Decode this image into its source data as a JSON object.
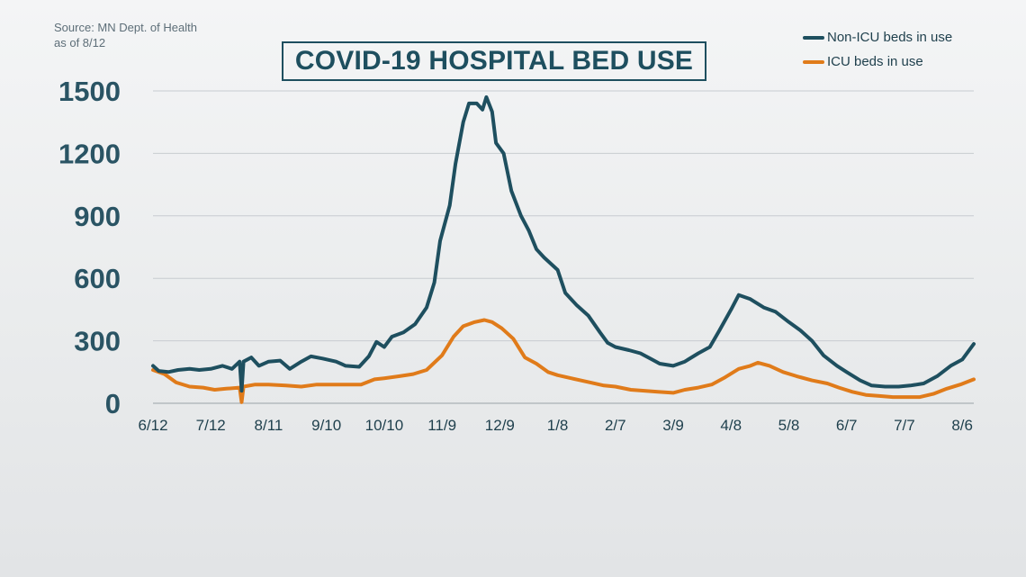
{
  "source": {
    "line1": "Source: MN Dept. of Health",
    "line2": "as of 8/12"
  },
  "colors": {
    "non_icu": "#1e4f5f",
    "icu": "#e07b1a",
    "grid": "#c8ccd0",
    "title": "#1e4f5f"
  },
  "chart_data": {
    "type": "line",
    "title": "COVID-19 HOSPITAL BED USE",
    "xlabel": "",
    "ylabel": "",
    "ylim": [
      0,
      1500
    ],
    "yticks": [
      0,
      300,
      600,
      900,
      1200,
      1500
    ],
    "xticks": [
      "6/12",
      "7/12",
      "8/11",
      "9/10",
      "10/10",
      "11/9",
      "12/9",
      "1/8",
      "2/7",
      "3/9",
      "4/8",
      "5/8",
      "6/7",
      "7/7",
      "8/6"
    ],
    "grid": true,
    "legend_position": "top-right",
    "x_start": "2020-06-12",
    "x_end": "2021-08-12",
    "series": [
      {
        "name": "Non-ICU beds in use",
        "color": "#1e4f5f",
        "points": [
          [
            "2020-06-12",
            180
          ],
          [
            "2020-06-15",
            155
          ],
          [
            "2020-06-20",
            150
          ],
          [
            "2020-06-25",
            160
          ],
          [
            "2020-07-01",
            165
          ],
          [
            "2020-07-06",
            160
          ],
          [
            "2020-07-12",
            165
          ],
          [
            "2020-07-18",
            180
          ],
          [
            "2020-07-23",
            165
          ],
          [
            "2020-07-27",
            200
          ],
          [
            "2020-07-28",
            60
          ],
          [
            "2020-07-29",
            200
          ],
          [
            "2020-08-02",
            220
          ],
          [
            "2020-08-06",
            180
          ],
          [
            "2020-08-11",
            200
          ],
          [
            "2020-08-17",
            205
          ],
          [
            "2020-08-22",
            165
          ],
          [
            "2020-08-28",
            200
          ],
          [
            "2020-09-02",
            225
          ],
          [
            "2020-09-08",
            215
          ],
          [
            "2020-09-15",
            200
          ],
          [
            "2020-09-20",
            180
          ],
          [
            "2020-09-27",
            175
          ],
          [
            "2020-10-02",
            225
          ],
          [
            "2020-10-06",
            295
          ],
          [
            "2020-10-10",
            270
          ],
          [
            "2020-10-14",
            320
          ],
          [
            "2020-10-20",
            340
          ],
          [
            "2020-10-26",
            380
          ],
          [
            "2020-11-01",
            460
          ],
          [
            "2020-11-05",
            580
          ],
          [
            "2020-11-08",
            780
          ],
          [
            "2020-11-13",
            950
          ],
          [
            "2020-11-16",
            1150
          ],
          [
            "2020-11-20",
            1350
          ],
          [
            "2020-11-23",
            1440
          ],
          [
            "2020-11-27",
            1440
          ],
          [
            "2020-11-30",
            1410
          ],
          [
            "2020-12-02",
            1470
          ],
          [
            "2020-12-05",
            1400
          ],
          [
            "2020-12-07",
            1250
          ],
          [
            "2020-12-11",
            1200
          ],
          [
            "2020-12-15",
            1020
          ],
          [
            "2020-12-20",
            900
          ],
          [
            "2020-12-24",
            830
          ],
          [
            "2020-12-28",
            740
          ],
          [
            "2021-01-01",
            700
          ],
          [
            "2021-01-08",
            640
          ],
          [
            "2021-01-12",
            530
          ],
          [
            "2021-01-18",
            470
          ],
          [
            "2021-01-24",
            420
          ],
          [
            "2021-01-30",
            340
          ],
          [
            "2021-02-03",
            290
          ],
          [
            "2021-02-07",
            270
          ],
          [
            "2021-02-14",
            255
          ],
          [
            "2021-02-20",
            240
          ],
          [
            "2021-02-26",
            210
          ],
          [
            "2021-03-02",
            190
          ],
          [
            "2021-03-09",
            180
          ],
          [
            "2021-03-15",
            200
          ],
          [
            "2021-03-22",
            240
          ],
          [
            "2021-03-28",
            270
          ],
          [
            "2021-04-02",
            350
          ],
          [
            "2021-04-08",
            450
          ],
          [
            "2021-04-12",
            520
          ],
          [
            "2021-04-18",
            500
          ],
          [
            "2021-04-25",
            460
          ],
          [
            "2021-05-01",
            440
          ],
          [
            "2021-05-08",
            390
          ],
          [
            "2021-05-14",
            350
          ],
          [
            "2021-05-20",
            300
          ],
          [
            "2021-05-26",
            230
          ],
          [
            "2021-06-02",
            180
          ],
          [
            "2021-06-07",
            150
          ],
          [
            "2021-06-14",
            110
          ],
          [
            "2021-06-20",
            85
          ],
          [
            "2021-06-27",
            80
          ],
          [
            "2021-07-04",
            80
          ],
          [
            "2021-07-10",
            85
          ],
          [
            "2021-07-17",
            95
          ],
          [
            "2021-07-24",
            130
          ],
          [
            "2021-07-31",
            180
          ],
          [
            "2021-08-06",
            210
          ],
          [
            "2021-08-12",
            285
          ]
        ]
      },
      {
        "name": "ICU beds in use",
        "color": "#e07b1a",
        "points": [
          [
            "2020-06-12",
            160
          ],
          [
            "2020-06-18",
            140
          ],
          [
            "2020-06-24",
            100
          ],
          [
            "2020-07-01",
            80
          ],
          [
            "2020-07-08",
            75
          ],
          [
            "2020-07-14",
            65
          ],
          [
            "2020-07-20",
            70
          ],
          [
            "2020-07-27",
            75
          ],
          [
            "2020-07-28",
            5
          ],
          [
            "2020-07-29",
            80
          ],
          [
            "2020-08-04",
            90
          ],
          [
            "2020-08-11",
            90
          ],
          [
            "2020-08-20",
            85
          ],
          [
            "2020-08-28",
            80
          ],
          [
            "2020-09-05",
            90
          ],
          [
            "2020-09-12",
            90
          ],
          [
            "2020-09-20",
            90
          ],
          [
            "2020-09-28",
            90
          ],
          [
            "2020-10-05",
            115
          ],
          [
            "2020-10-10",
            120
          ],
          [
            "2020-10-18",
            130
          ],
          [
            "2020-10-25",
            140
          ],
          [
            "2020-11-01",
            160
          ],
          [
            "2020-11-09",
            230
          ],
          [
            "2020-11-15",
            320
          ],
          [
            "2020-11-20",
            370
          ],
          [
            "2020-11-26",
            390
          ],
          [
            "2020-12-01",
            400
          ],
          [
            "2020-12-05",
            390
          ],
          [
            "2020-12-10",
            360
          ],
          [
            "2020-12-16",
            310
          ],
          [
            "2020-12-22",
            220
          ],
          [
            "2020-12-28",
            190
          ],
          [
            "2021-01-03",
            150
          ],
          [
            "2021-01-08",
            135
          ],
          [
            "2021-01-15",
            120
          ],
          [
            "2021-01-25",
            100
          ],
          [
            "2021-02-01",
            85
          ],
          [
            "2021-02-07",
            80
          ],
          [
            "2021-02-15",
            65
          ],
          [
            "2021-02-22",
            60
          ],
          [
            "2021-03-01",
            55
          ],
          [
            "2021-03-09",
            50
          ],
          [
            "2021-03-15",
            65
          ],
          [
            "2021-03-22",
            75
          ],
          [
            "2021-03-29",
            90
          ],
          [
            "2021-04-05",
            125
          ],
          [
            "2021-04-12",
            165
          ],
          [
            "2021-04-18",
            180
          ],
          [
            "2021-04-22",
            195
          ],
          [
            "2021-04-28",
            180
          ],
          [
            "2021-05-05",
            150
          ],
          [
            "2021-05-12",
            130
          ],
          [
            "2021-05-20",
            110
          ],
          [
            "2021-05-28",
            95
          ],
          [
            "2021-06-03",
            75
          ],
          [
            "2021-06-10",
            55
          ],
          [
            "2021-06-17",
            40
          ],
          [
            "2021-06-24",
            35
          ],
          [
            "2021-07-01",
            30
          ],
          [
            "2021-07-08",
            30
          ],
          [
            "2021-07-15",
            30
          ],
          [
            "2021-07-22",
            45
          ],
          [
            "2021-07-29",
            70
          ],
          [
            "2021-08-05",
            90
          ],
          [
            "2021-08-12",
            115
          ]
        ]
      }
    ]
  }
}
